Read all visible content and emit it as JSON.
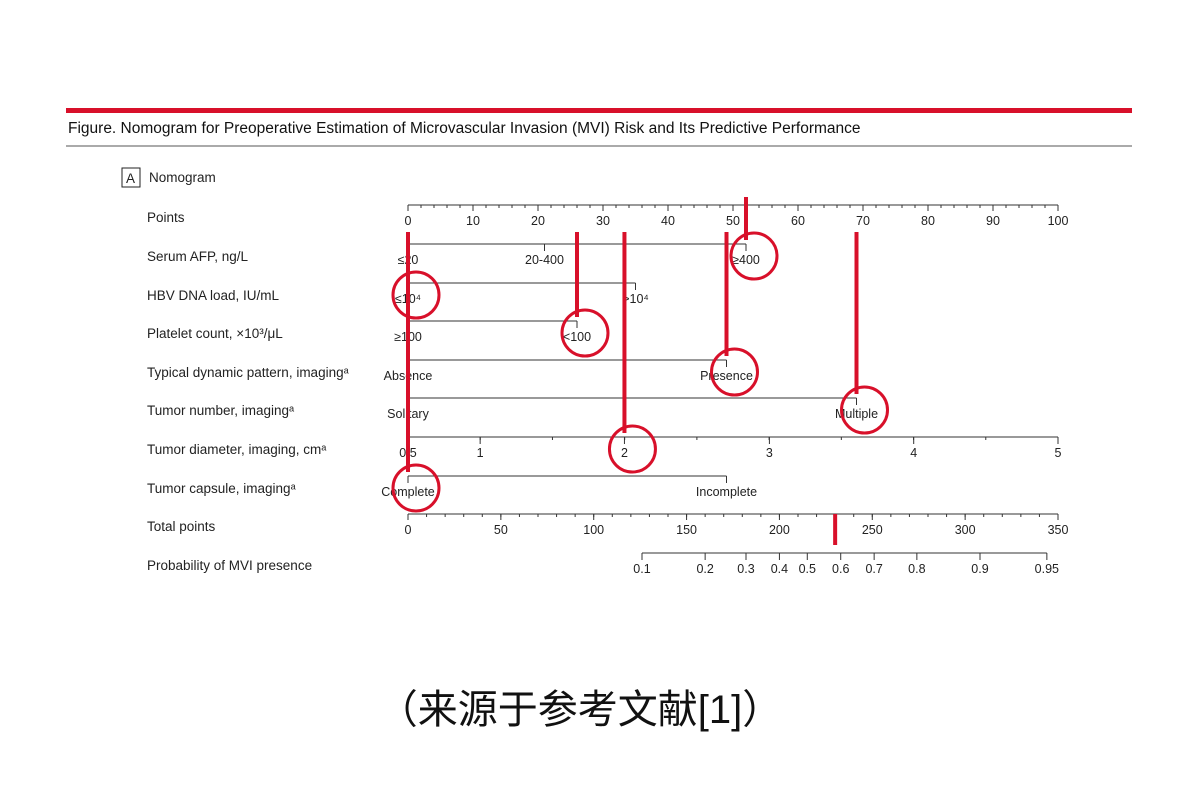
{
  "figure": {
    "title": "Figure. Nomogram for Preoperative Estimation of Microvascular Invasion (MVI) Risk and Its Predictive Performance",
    "panel_letter": "A",
    "panel_title": "Nomogram",
    "accent_color": "#d8102a",
    "rule_color": "#444444"
  },
  "caption": "（来源于参考文献[1]）",
  "chart_data": {
    "type": "nomogram",
    "rows": [
      {
        "label": "Points",
        "kind": "scale",
        "range": [
          0,
          100
        ],
        "ticks": [
          0,
          10,
          20,
          30,
          40,
          50,
          60,
          70,
          80,
          90,
          100
        ],
        "tick_labels": [
          "0",
          "10",
          "20",
          "30",
          "40",
          "50",
          "60",
          "70",
          "80",
          "90",
          "100"
        ],
        "minor_step": 2
      },
      {
        "label": "Serum AFP, ng/L",
        "kind": "categorical",
        "categories": [
          {
            "label": "≤20",
            "points": 0
          },
          {
            "label": "20-400",
            "points": 21
          },
          {
            "label": "≥400",
            "points": 52
          }
        ],
        "selected": "≥400",
        "selected_points": 52
      },
      {
        "label": "HBV DNA load, IU/mL",
        "kind": "categorical",
        "categories": [
          {
            "label": "≤10⁴",
            "points": 0
          },
          {
            "label": ">10⁴",
            "points": 35
          }
        ],
        "selected": "≤10⁴",
        "selected_points": 0
      },
      {
        "label": "Platelet count, ×10³/μL",
        "kind": "categorical",
        "categories": [
          {
            "label": "≥100",
            "points": 0
          },
          {
            "label": "<100",
            "points": 26
          }
        ],
        "selected": "<100",
        "selected_points": 26
      },
      {
        "label": "Typical dynamic pattern, imagingᵃ",
        "kind": "categorical",
        "categories": [
          {
            "label": "Absence",
            "points": 0
          },
          {
            "label": "Presence",
            "points": 49
          }
        ],
        "selected": "Presence",
        "selected_points": 49
      },
      {
        "label": "Tumor number, imagingᵃ",
        "kind": "categorical",
        "categories": [
          {
            "label": "Solitary",
            "points": 0
          },
          {
            "label": "Multiple",
            "points": 69
          }
        ],
        "selected": "Multiple",
        "selected_points": 69
      },
      {
        "label": "Tumor diameter, imaging, cmᵃ",
        "kind": "continuous",
        "values": [
          0.5,
          1,
          2,
          3,
          4,
          5
        ],
        "value_labels": [
          "0.5",
          "1",
          "2",
          "3",
          "4",
          "5"
        ],
        "value_points": [
          0,
          11.1,
          33.3,
          55.6,
          77.8,
          100
        ],
        "selected": "2",
        "selected_points": 33.3
      },
      {
        "label": "Tumor capsule, imagingᵃ",
        "kind": "categorical",
        "categories": [
          {
            "label": "Complete",
            "points": 0
          },
          {
            "label": "Incomplete",
            "points": 49
          }
        ],
        "selected": "Complete",
        "selected_points": 0
      },
      {
        "label": "Total points",
        "kind": "scale",
        "range": [
          0,
          350
        ],
        "ticks": [
          0,
          50,
          100,
          150,
          200,
          250,
          300,
          350
        ],
        "tick_labels": [
          "0",
          "50",
          "100",
          "150",
          "200",
          "250",
          "300",
          "350"
        ],
        "minor_step": 10,
        "marked_value": 230
      },
      {
        "label": "Probability of MVI presence",
        "kind": "probability",
        "values": [
          0.1,
          0.2,
          0.3,
          0.4,
          0.5,
          0.6,
          0.7,
          0.8,
          0.9,
          0.95
        ],
        "value_labels": [
          "0.1",
          "0.2",
          "0.3",
          "0.4",
          "0.5",
          "0.6",
          "0.7",
          "0.8",
          "0.9",
          "0.95"
        ],
        "total_points": [
          126,
          160,
          182,
          200,
          215,
          233,
          251,
          274,
          308,
          344
        ]
      }
    ]
  }
}
